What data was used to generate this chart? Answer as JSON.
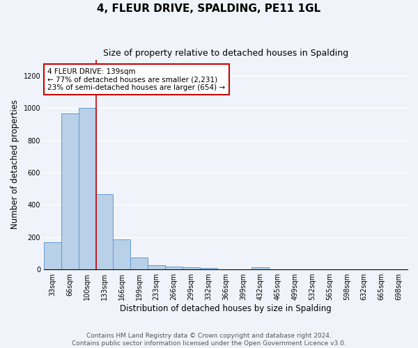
{
  "title": "4, FLEUR DRIVE, SPALDING, PE11 1GL",
  "subtitle": "Size of property relative to detached houses in Spalding",
  "xlabel": "Distribution of detached houses by size in Spalding",
  "ylabel": "Number of detached properties",
  "categories": [
    "33sqm",
    "66sqm",
    "100sqm",
    "133sqm",
    "166sqm",
    "199sqm",
    "233sqm",
    "266sqm",
    "299sqm",
    "332sqm",
    "366sqm",
    "399sqm",
    "432sqm",
    "465sqm",
    "499sqm",
    "532sqm",
    "565sqm",
    "598sqm",
    "632sqm",
    "665sqm",
    "698sqm"
  ],
  "values": [
    170,
    965,
    1000,
    465,
    185,
    75,
    28,
    20,
    15,
    10,
    0,
    0,
    12,
    0,
    0,
    0,
    0,
    0,
    0,
    0,
    0
  ],
  "bar_color": "#b8d0e8",
  "bar_edge_color": "#6699cc",
  "vline_x_index": 2,
  "vline_color": "#cc0000",
  "annotation_text": "4 FLEUR DRIVE: 139sqm\n← 77% of detached houses are smaller (2,231)\n23% of semi-detached houses are larger (654) →",
  "annotation_box_color": "#ffffff",
  "annotation_box_edge_color": "#cc0000",
  "ylim": [
    0,
    1300
  ],
  "yticks": [
    0,
    200,
    400,
    600,
    800,
    1000,
    1200
  ],
  "footer_text": "Contains HM Land Registry data © Crown copyright and database right 2024.\nContains public sector information licensed under the Open Government Licence v3.0.",
  "background_color": "#f0f4fa",
  "grid_color": "#ffffff",
  "title_fontsize": 11,
  "subtitle_fontsize": 9,
  "axis_label_fontsize": 8.5,
  "tick_fontsize": 7,
  "footer_fontsize": 6.5,
  "annotation_fontsize": 7.5
}
